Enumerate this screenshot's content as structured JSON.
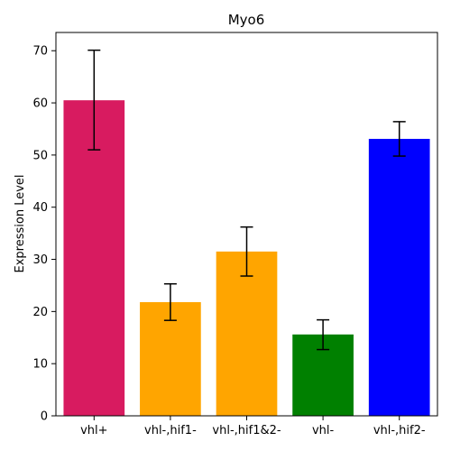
{
  "chart_data": {
    "type": "bar",
    "title": "Myo6",
    "xlabel": "",
    "ylabel": "Expression Level",
    "ylim": [
      0,
      73.5
    ],
    "yticks": [
      0,
      10,
      20,
      30,
      40,
      50,
      60,
      70
    ],
    "grid": false,
    "categories": [
      "vhl+",
      "vhl-,hif1-",
      "vhl-,hif1&2-",
      "vhl-",
      "vhl-,hif2-"
    ],
    "values": [
      60.5,
      21.8,
      31.5,
      15.6,
      53.1
    ],
    "error_low": [
      51.0,
      18.3,
      26.8,
      12.7,
      49.8
    ],
    "error_high": [
      70.1,
      25.3,
      36.2,
      18.4,
      56.4
    ],
    "colors": [
      "#d81b60",
      "#ffa500",
      "#ffa500",
      "#008000",
      "#0000ff"
    ]
  }
}
